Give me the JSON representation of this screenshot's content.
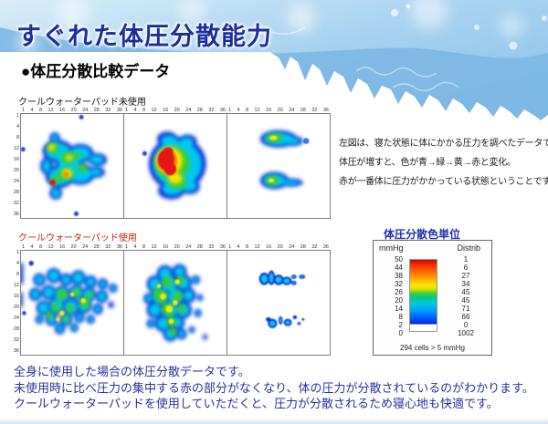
{
  "banner": {
    "title": "すぐれた体圧分散能力"
  },
  "section_heading": "●体圧分散比較データ",
  "maps": {
    "unused_label": "クールウォーターパッド未使用",
    "used_label": "クールウォーターパッド使用",
    "ticks": [
      "1",
      "4",
      "8",
      "12",
      "16",
      "20",
      "24",
      "28",
      "32",
      "36"
    ]
  },
  "note": {
    "line1": "左図は、寝た状態に体にかかる圧力を調べたデータです。",
    "line2": "体圧が増すと、色が青→緑→黄→赤と変化。",
    "line3": "赤が一番体に圧力がかかっている状態ということです。"
  },
  "legend": {
    "title": "体圧分散色単位",
    "col_left": "mmHg",
    "col_right": "Distrib",
    "mmhg": [
      "50",
      "44",
      "38",
      "32",
      "26",
      "20",
      "14",
      "8",
      "2",
      "0"
    ],
    "distrib": [
      "1",
      "6",
      "27",
      "34",
      "45",
      "45",
      "71",
      "66",
      "0",
      "1002"
    ],
    "caption": "294 cells > 5 mmHg"
  },
  "footer": {
    "line1": "全身に使用した場合の体圧分散データです。",
    "line2": "未使用時に比べ圧力の集中する赤の部分がなくなり、体の圧力が分散されているのがわかります。",
    "line3": "クールウォーターパッドを使用していただくと、圧力が分散されるため寝心地も快適です。"
  }
}
